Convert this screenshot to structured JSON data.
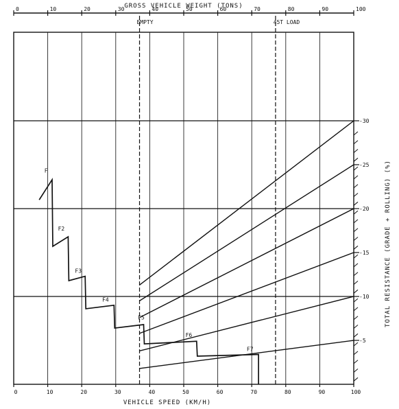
{
  "chart_data": {
    "type": "line",
    "title": "",
    "top_axis": {
      "label": "GROSS VEHICLE WEIGHT  (TONS)",
      "range": [
        0,
        100
      ],
      "ticks": [
        "0",
        "10",
        "20",
        "30",
        "40",
        "50",
        "60",
        "70",
        "80",
        "90",
        "100"
      ]
    },
    "x_axis": {
      "label": "VEHICLE SPEED  (KM/H)",
      "range": [
        0,
        100
      ],
      "ticks": [
        "0",
        "10",
        "20",
        "30",
        "40",
        "50",
        "60",
        "70",
        "80",
        "90",
        "100"
      ]
    },
    "right_axis": {
      "label": "TOTAL RESISTANCE (GRADE + ROLLING) (%)",
      "range": [
        0,
        30
      ],
      "ticks": [
        "-5",
        "-10",
        "-15",
        "-20",
        "-25",
        "-30"
      ]
    },
    "weight_markers": [
      {
        "label": "EMPTY",
        "weight": 37
      },
      {
        "label": "45T LOAD",
        "weight": 77
      }
    ],
    "gear_labels": [
      "F",
      "F2",
      "F3",
      "F4",
      "F5",
      "F6",
      "F7"
    ],
    "rimpull_curve": [
      [
        7.5,
        21
      ],
      [
        11.3,
        23.3
      ],
      [
        11.5,
        15.7
      ],
      [
        16,
        16.8
      ],
      [
        16.2,
        11.8
      ],
      [
        21,
        12.3
      ],
      [
        21.2,
        8.6
      ],
      [
        29.5,
        9
      ],
      [
        29.7,
        6.4
      ],
      [
        38.2,
        6.8
      ],
      [
        38.4,
        4.6
      ],
      [
        53.8,
        4.9
      ],
      [
        54,
        3.2
      ],
      [
        72,
        3.4
      ],
      [
        72,
        0
      ]
    ],
    "resistance_lines": [
      {
        "resistance": 30,
        "at_empty": 11.3
      },
      {
        "resistance": 25,
        "at_empty": 9.5
      },
      {
        "resistance": 20,
        "at_empty": 7.6
      },
      {
        "resistance": 15,
        "at_empty": 5.8
      },
      {
        "resistance": 10,
        "at_empty": 3.8
      },
      {
        "resistance": 5,
        "at_empty": 1.8
      }
    ],
    "grid": true,
    "legend": "none"
  }
}
